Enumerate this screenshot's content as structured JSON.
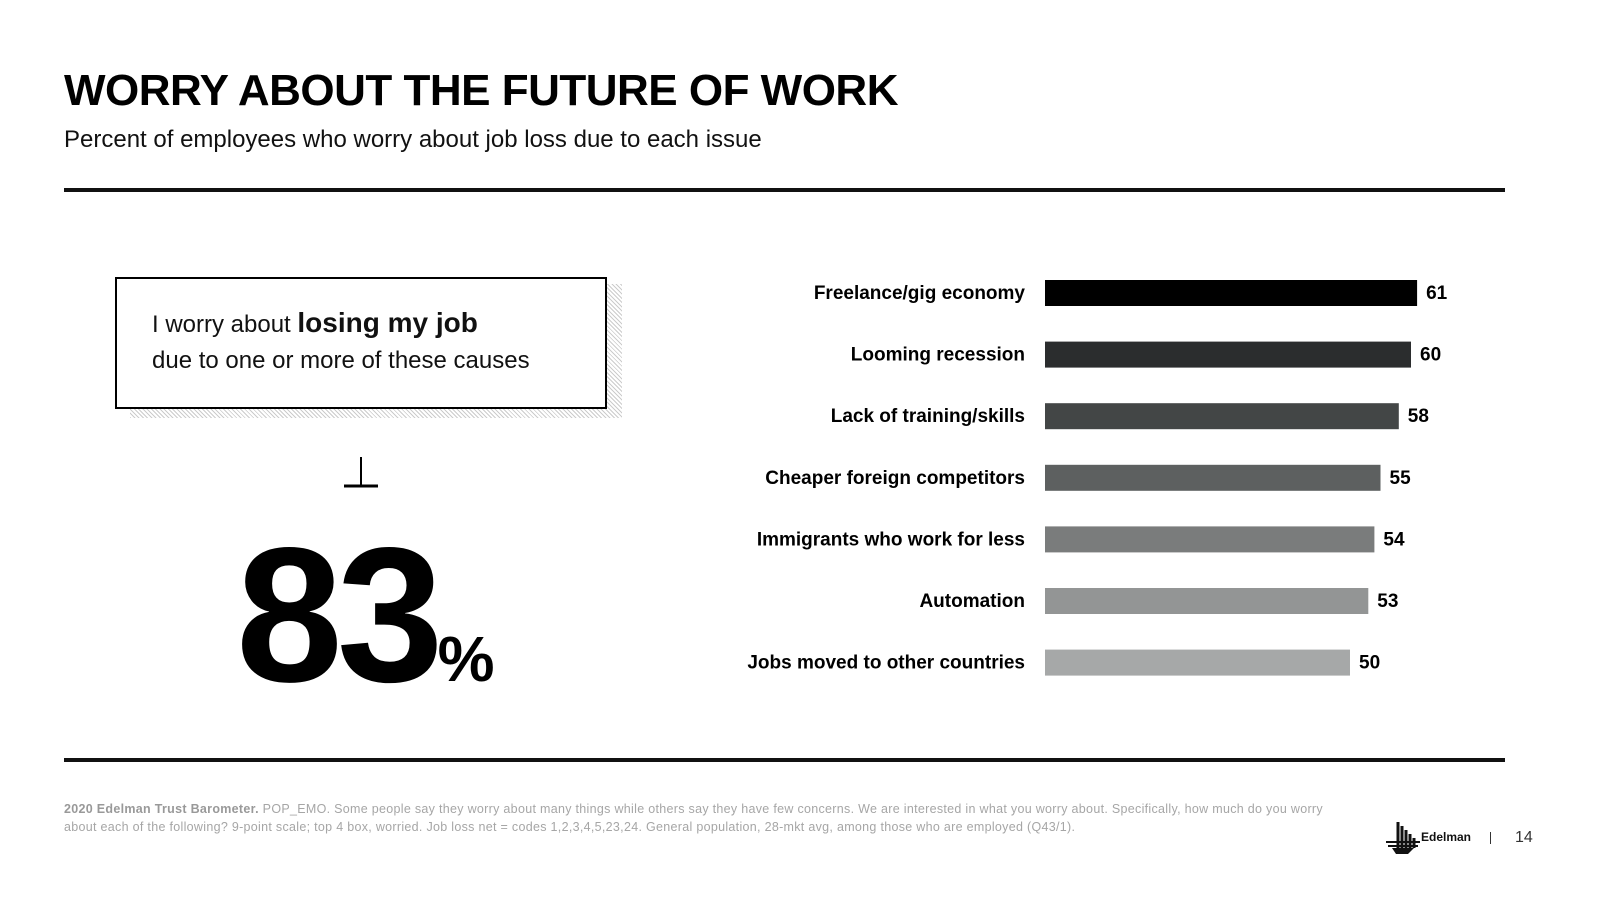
{
  "title": "WORRY ABOUT THE FUTURE OF WORK",
  "subtitle": "Percent of employees who worry about job loss due to each issue",
  "callout": {
    "prefix": "I worry about ",
    "bold": "losing my job",
    "line2": "due to one or more of these causes"
  },
  "big_stat": {
    "value": "83",
    "unit": "%"
  },
  "chart_data": {
    "type": "bar",
    "orientation": "horizontal",
    "categories": [
      "Freelance/gig economy",
      "Looming recession",
      "Lack of training/skills",
      "Cheaper foreign competitors",
      "Immigrants who work for less",
      "Automation",
      "Jobs moved to other countries"
    ],
    "values": [
      61,
      60,
      58,
      55,
      54,
      53,
      50
    ],
    "colors": [
      "#000000",
      "#2b2d2e",
      "#434646",
      "#5d6060",
      "#7a7c7c",
      "#939595",
      "#a6a8a8"
    ],
    "xlim": [
      0,
      100
    ],
    "title": "",
    "xlabel": "",
    "ylabel": "",
    "grid": false
  },
  "footer": {
    "bold": "2020 Edelman Trust Barometer.",
    "text": " POP_EMO. Some people say they worry about many things while others say they have few concerns. We are interested in what you worry about. Specifically, how much do you worry about each of the following? 9-point scale; top 4 box, worried. Job loss net = codes 1,2,3,4,5,23,24. General population, 28-mkt avg, among those who are employed (Q43/1)."
  },
  "logo": "Edelman",
  "page_number": "14"
}
